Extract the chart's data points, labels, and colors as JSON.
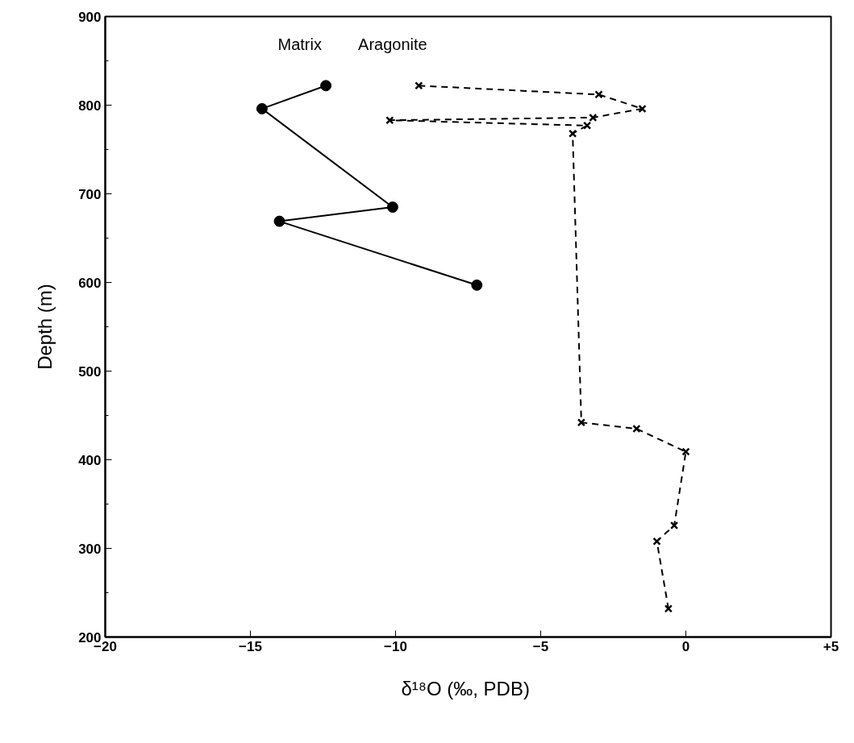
{
  "chart_data": {
    "type": "line",
    "xlabel": "δ¹⁸O  (‰, PDB)",
    "ylabel": "Depth (m)",
    "xlim": [
      -20,
      5
    ],
    "xticks": [
      -20,
      -15,
      -10,
      -5,
      0,
      {
        "value": 5,
        "label": "+5"
      }
    ],
    "ylim": [
      200,
      900
    ],
    "yticks": [
      200,
      300,
      400,
      500,
      600,
      700,
      800,
      900
    ],
    "series": [
      {
        "name": "Matrix",
        "color": "#000000",
        "marker": "circle",
        "line_style": "solid",
        "x": [
          -12.4,
          -14.6,
          -10.1,
          -14.0,
          -7.2
        ],
        "values": [
          822,
          796,
          685,
          669,
          597
        ]
      },
      {
        "name": "Aragonite",
        "color": "#000000",
        "marker": "cross",
        "line_style": "dashed",
        "x": [
          -9.2,
          -3.0,
          -1.5,
          -3.2,
          -10.2,
          -3.4,
          -3.9,
          -3.6,
          -1.7,
          0.0,
          -0.4,
          -1.0,
          -0.6
        ],
        "values": [
          822,
          812,
          796,
          786,
          783,
          777,
          768,
          442,
          435,
          409,
          326,
          308,
          232
        ]
      }
    ]
  }
}
